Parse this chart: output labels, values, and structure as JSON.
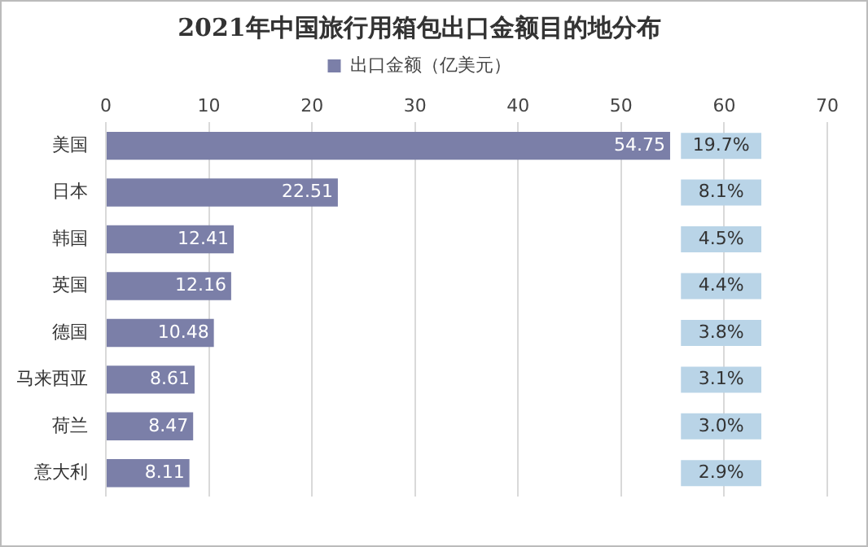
{
  "chart_data": {
    "type": "bar",
    "orientation": "horizontal",
    "title": "2021年中国旅行用箱包出口金额目的地分布",
    "categories": [
      "美国",
      "日本",
      "韩国",
      "英国",
      "德国",
      "马来西亚",
      "荷兰",
      "意大利"
    ],
    "series": [
      {
        "name": "出口金额（亿美元）",
        "color": "#7b7fa8",
        "values": [
          54.75,
          22.51,
          12.41,
          12.16,
          10.48,
          8.61,
          8.47,
          8.11
        ]
      }
    ],
    "xlim": [
      0,
      70
    ],
    "xticks": [
      0,
      10,
      20,
      30,
      40,
      50,
      60,
      70
    ],
    "grid": "x",
    "legend": "top",
    "data_labels": true,
    "annotations": [
      "19.7%",
      "8.1%",
      "4.5%",
      "4.4%",
      "3.8%",
      "3.1%",
      "3.0%",
      "2.9%"
    ]
  }
}
